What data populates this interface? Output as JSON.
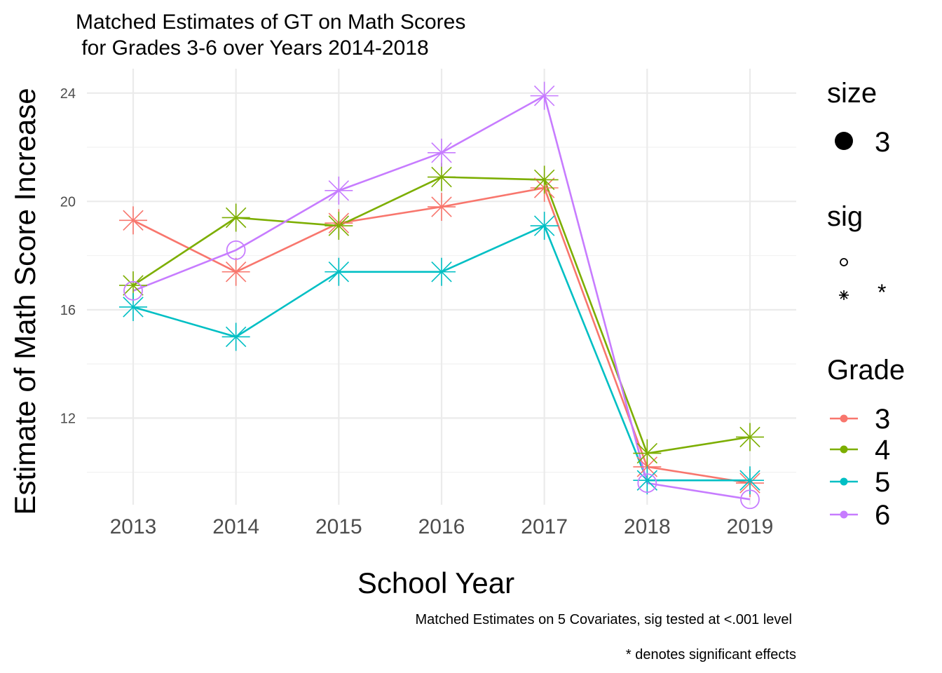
{
  "chart_data": {
    "type": "line",
    "title": "Matched Estimates of GT on Math Scores",
    "subtitle": " for Grades 3-6 over Years 2014-2018",
    "xlabel": "School Year",
    "ylabel": "Estimate of Math Score Increase",
    "caption_lines": [
      "Matched Estimates on 5 Covariates, sig tested at <.001 level",
      "* denotes significant effects"
    ],
    "x": [
      2013,
      2014,
      2015,
      2016,
      2017,
      2018,
      2019
    ],
    "x_tick_labels": [
      "2013",
      "2014",
      "2015",
      "2016",
      "2017",
      "2018",
      "2019"
    ],
    "ylim": [
      8.8,
      24.9
    ],
    "y_ticks": [
      12,
      16,
      20,
      24
    ],
    "y_tick_labels": [
      "12",
      "16",
      "20",
      "24"
    ],
    "grid": true,
    "series": [
      {
        "name": "3",
        "color": "#F8766D",
        "values": [
          19.3,
          17.4,
          19.2,
          19.8,
          20.5,
          10.2,
          9.6
        ],
        "sig": [
          "*",
          "*",
          "*",
          "*",
          "*",
          "*",
          "*"
        ]
      },
      {
        "name": "4",
        "color": "#7CAE00",
        "values": [
          16.9,
          19.4,
          19.1,
          20.9,
          20.8,
          10.7,
          11.3
        ],
        "sig": [
          "*",
          "*",
          "*",
          "*",
          "*",
          "*",
          "*"
        ]
      },
      {
        "name": "5",
        "color": "#00BFC4",
        "values": [
          16.1,
          15.0,
          17.4,
          17.4,
          19.1,
          9.7,
          9.7
        ],
        "sig": [
          "*",
          "*",
          "*",
          "*",
          "*",
          "*",
          "*"
        ]
      },
      {
        "name": "6",
        "color": "#C77CFF",
        "values": [
          16.7,
          18.2,
          20.4,
          21.8,
          23.9,
          9.6,
          9.0
        ],
        "sig": [
          "o",
          "o",
          "*",
          "*",
          "*",
          "o",
          "o"
        ]
      }
    ],
    "legend": {
      "placement": "right",
      "size": {
        "title": "size",
        "entries": [
          "3"
        ]
      },
      "sig": {
        "title": "sig",
        "entries": [
          "",
          "*"
        ]
      },
      "grade": {
        "title": "Grade",
        "entries": [
          "3",
          "4",
          "5",
          "6"
        ]
      }
    }
  }
}
